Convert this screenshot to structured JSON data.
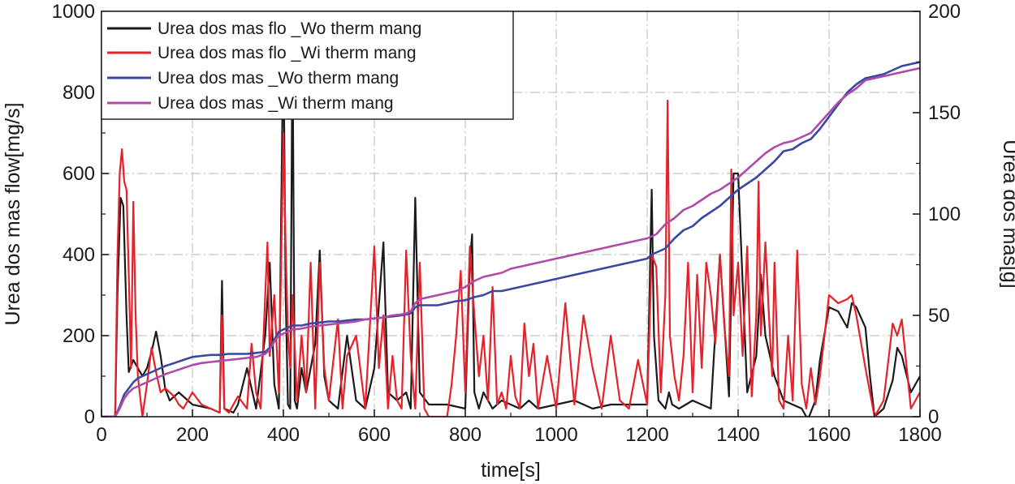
{
  "chart_data": {
    "type": "line",
    "xlabel": "time[s]",
    "ylabel_left": "Urea dos mas flow[mg/s]",
    "ylabel_right": "Urea dos mas[g]",
    "xlim": [
      0,
      1800
    ],
    "ylim_left": [
      0,
      1000
    ],
    "ylim_right": [
      0,
      200
    ],
    "x_ticks": [
      0,
      200,
      400,
      600,
      800,
      1000,
      1200,
      1400,
      1600,
      1800
    ],
    "y_ticks_left": [
      0,
      200,
      400,
      600,
      800,
      1000
    ],
    "y_ticks_right": [
      0,
      50,
      100,
      150,
      200
    ],
    "grid": true,
    "legend_position": "top-left",
    "colors": {
      "flow_wo": "#1a1a1a",
      "flow_wi": "#e8202a",
      "mass_wo": "#3a47a0",
      "mass_wi": "#b04aa8"
    },
    "series": [
      {
        "name": "Urea dos mas flo _Wo therm mang",
        "axis": "left",
        "color": "#1a1a1a",
        "x": [
          0,
          30,
          35,
          42,
          48,
          55,
          60,
          70,
          90,
          100,
          110,
          120,
          130,
          140,
          150,
          170,
          200,
          240,
          260,
          265,
          270,
          290,
          300,
          320,
          340,
          360,
          370,
          380,
          390,
          400,
          405,
          410,
          415,
          420,
          425,
          430,
          440,
          450,
          470,
          480,
          490,
          500,
          520,
          540,
          560,
          580,
          600,
          620,
          630,
          650,
          670,
          680,
          690,
          700,
          720,
          760,
          800,
          810,
          815,
          820,
          830,
          840,
          860,
          880,
          900,
          920,
          940,
          960,
          1000,
          1040,
          1080,
          1120,
          1160,
          1200,
          1210,
          1215,
          1225,
          1240,
          1248,
          1255,
          1270,
          1300,
          1320,
          1340,
          1360,
          1380,
          1390,
          1400,
          1420,
          1440,
          1450,
          1460,
          1480,
          1500,
          1520,
          1540,
          1550,
          1556,
          1570,
          1580,
          1600,
          1620,
          1640,
          1650,
          1660,
          1680,
          1690,
          1700,
          1720,
          1740,
          1750,
          1760,
          1780,
          1800
        ],
        "y": [
          0,
          0,
          300,
          540,
          520,
          250,
          110,
          140,
          100,
          120,
          160,
          210,
          150,
          70,
          40,
          60,
          30,
          20,
          10,
          335,
          20,
          10,
          30,
          120,
          20,
          200,
          380,
          80,
          20,
          950,
          300,
          30,
          20,
          940,
          40,
          20,
          120,
          60,
          180,
          410,
          100,
          40,
          20,
          200,
          40,
          20,
          120,
          430,
          60,
          40,
          60,
          20,
          540,
          60,
          30,
          30,
          20,
          380,
          450,
          60,
          20,
          60,
          20,
          40,
          30,
          20,
          40,
          20,
          30,
          40,
          20,
          30,
          30,
          30,
          560,
          200,
          40,
          20,
          60,
          30,
          20,
          40,
          30,
          20,
          400,
          50,
          600,
          600,
          60,
          150,
          350,
          200,
          100,
          40,
          30,
          20,
          0,
          0,
          40,
          140,
          270,
          260,
          220,
          280,
          270,
          220,
          100,
          0,
          20,
          90,
          170,
          150,
          60,
          100
        ]
      },
      {
        "name": "Urea dos mas flo _Wi therm mang",
        "axis": "left",
        "color": "#e8202a",
        "x": [
          0,
          30,
          35,
          40,
          45,
          50,
          55,
          60,
          65,
          70,
          75,
          80,
          90,
          100,
          110,
          120,
          130,
          140,
          150,
          160,
          170,
          180,
          200,
          220,
          240,
          260,
          265,
          270,
          280,
          300,
          320,
          330,
          340,
          350,
          360,
          365,
          370,
          380,
          390,
          395,
          400,
          405,
          410,
          415,
          420,
          430,
          440,
          450,
          460,
          470,
          480,
          490,
          500,
          520,
          530,
          540,
          560,
          580,
          600,
          610,
          620,
          630,
          640,
          650,
          660,
          670,
          680,
          690,
          700,
          710,
          720,
          740,
          760,
          770,
          780,
          790,
          800,
          810,
          820,
          830,
          840,
          850,
          860,
          870,
          880,
          890,
          900,
          910,
          920,
          930,
          940,
          950,
          960,
          980,
          1000,
          1020,
          1040,
          1060,
          1080,
          1100,
          1120,
          1140,
          1160,
          1180,
          1200,
          1210,
          1220,
          1230,
          1240,
          1245,
          1250,
          1260,
          1270,
          1280,
          1290,
          1300,
          1310,
          1320,
          1330,
          1340,
          1350,
          1360,
          1370,
          1380,
          1385,
          1390,
          1400,
          1410,
          1420,
          1430,
          1440,
          1445,
          1450,
          1460,
          1470,
          1475,
          1480,
          1490,
          1500,
          1510,
          1520,
          1530,
          1540,
          1550,
          1560,
          1570,
          1580,
          1600,
          1620,
          1640,
          1650,
          1660,
          1680,
          1690,
          1700,
          1720,
          1740,
          1750,
          1760,
          1780,
          1800
        ],
        "y": [
          0,
          0,
          390,
          600,
          660,
          580,
          560,
          350,
          120,
          530,
          250,
          100,
          0,
          80,
          170,
          110,
          60,
          70,
          60,
          50,
          30,
          20,
          60,
          30,
          20,
          10,
          250,
          20,
          10,
          50,
          20,
          180,
          60,
          20,
          300,
          430,
          150,
          300,
          60,
          380,
          700,
          420,
          200,
          120,
          300,
          40,
          200,
          60,
          380,
          20,
          380,
          120,
          40,
          240,
          20,
          150,
          200,
          20,
          420,
          120,
          250,
          20,
          150,
          40,
          20,
          410,
          150,
          20,
          380,
          20,
          0,
          0,
          0,
          80,
          200,
          360,
          60,
          420,
          250,
          100,
          200,
          40,
          320,
          30,
          60,
          20,
          150,
          50,
          20,
          230,
          100,
          180,
          20,
          150,
          20,
          280,
          30,
          250,
          120,
          20,
          200,
          40,
          20,
          140,
          30,
          400,
          370,
          60,
          300,
          780,
          200,
          100,
          40,
          150,
          380,
          60,
          350,
          120,
          380,
          300,
          180,
          400,
          220,
          100,
          610,
          250,
          380,
          150,
          420,
          50,
          250,
          580,
          200,
          430,
          200,
          100,
          380,
          40,
          20,
          200,
          40,
          410,
          80,
          20,
          120,
          30,
          100,
          300,
          280,
          290,
          300,
          250,
          120,
          60,
          0,
          40,
          230,
          200,
          240,
          20,
          60
        ]
      },
      {
        "name": "Urea dos mas _Wo therm mang",
        "axis": "right",
        "color": "#3a47a0",
        "x": [
          0,
          30,
          40,
          50,
          60,
          70,
          80,
          100,
          120,
          140,
          160,
          180,
          200,
          220,
          240,
          260,
          280,
          300,
          320,
          340,
          360,
          370,
          380,
          390,
          400,
          410,
          420,
          440,
          460,
          480,
          500,
          520,
          540,
          560,
          580,
          600,
          620,
          640,
          660,
          670,
          680,
          690,
          700,
          720,
          740,
          760,
          780,
          800,
          820,
          840,
          860,
          880,
          900,
          920,
          940,
          960,
          980,
          1000,
          1020,
          1040,
          1060,
          1080,
          1100,
          1120,
          1140,
          1160,
          1180,
          1200,
          1210,
          1220,
          1240,
          1260,
          1280,
          1300,
          1320,
          1340,
          1360,
          1380,
          1400,
          1420,
          1440,
          1460,
          1480,
          1500,
          1520,
          1540,
          1560,
          1580,
          1600,
          1620,
          1640,
          1660,
          1680,
          1700,
          1720,
          1740,
          1760,
          1780,
          1800
        ],
        "y": [
          0,
          0,
          5,
          11,
          14,
          17,
          19,
          21,
          23,
          25,
          26.5,
          28,
          29.5,
          30,
          30.5,
          30.5,
          31,
          31,
          31,
          31.5,
          32,
          34,
          38,
          42,
          43,
          44,
          45,
          45,
          46,
          46.5,
          47,
          47,
          47.5,
          48,
          48,
          48.5,
          49,
          49.5,
          50,
          50.5,
          51,
          54,
          55,
          55,
          55,
          56,
          57,
          57.5,
          59,
          60,
          62,
          62,
          63,
          64,
          65,
          66,
          67,
          68,
          69,
          70,
          71,
          72,
          73,
          74,
          75,
          76,
          77,
          78,
          80,
          81,
          83,
          88,
          92,
          94,
          98,
          101,
          104,
          108,
          112,
          115,
          118,
          122,
          126,
          131,
          132,
          135,
          137,
          142,
          148,
          154,
          160,
          164,
          167,
          168,
          169,
          171,
          173,
          174,
          175
        ]
      },
      {
        "name": "Urea dos mas _Wi therm mang",
        "axis": "right",
        "color": "#b04aa8",
        "x": [
          0,
          30,
          40,
          50,
          60,
          70,
          80,
          100,
          120,
          140,
          160,
          180,
          200,
          220,
          240,
          260,
          280,
          300,
          320,
          340,
          360,
          370,
          380,
          390,
          400,
          410,
          420,
          440,
          460,
          480,
          500,
          520,
          540,
          560,
          580,
          600,
          620,
          640,
          660,
          670,
          680,
          690,
          700,
          720,
          740,
          760,
          780,
          800,
          820,
          840,
          860,
          880,
          900,
          920,
          940,
          960,
          980,
          1000,
          1020,
          1040,
          1060,
          1080,
          1100,
          1120,
          1140,
          1160,
          1180,
          1200,
          1210,
          1220,
          1240,
          1260,
          1280,
          1300,
          1320,
          1340,
          1360,
          1380,
          1400,
          1420,
          1440,
          1460,
          1480,
          1500,
          1520,
          1540,
          1560,
          1580,
          1600,
          1620,
          1640,
          1660,
          1680,
          1700,
          1720,
          1740,
          1760,
          1780,
          1800
        ],
        "y": [
          0,
          0,
          4,
          9,
          12,
          14,
          15,
          17,
          19,
          21,
          22.5,
          24,
          25.5,
          26.5,
          27,
          27.5,
          28,
          28.5,
          29,
          29.5,
          31,
          33,
          37,
          40,
          41,
          42,
          43,
          43.5,
          44.5,
          45,
          45.5,
          46,
          46.5,
          47,
          48,
          48.5,
          49,
          50,
          50.5,
          51,
          52,
          56,
          58,
          59,
          60,
          61,
          62,
          64,
          67,
          69,
          70,
          71,
          73,
          74,
          75,
          76,
          77,
          78,
          79,
          80,
          81,
          82,
          83,
          84,
          85,
          86,
          87,
          88,
          89,
          90,
          95,
          98,
          102,
          104,
          107,
          110,
          112,
          115,
          118,
          122,
          126,
          130,
          133,
          135,
          136,
          138,
          140,
          145,
          150,
          155,
          159,
          162,
          166,
          167,
          168,
          169,
          170,
          171,
          172
        ]
      }
    ]
  }
}
